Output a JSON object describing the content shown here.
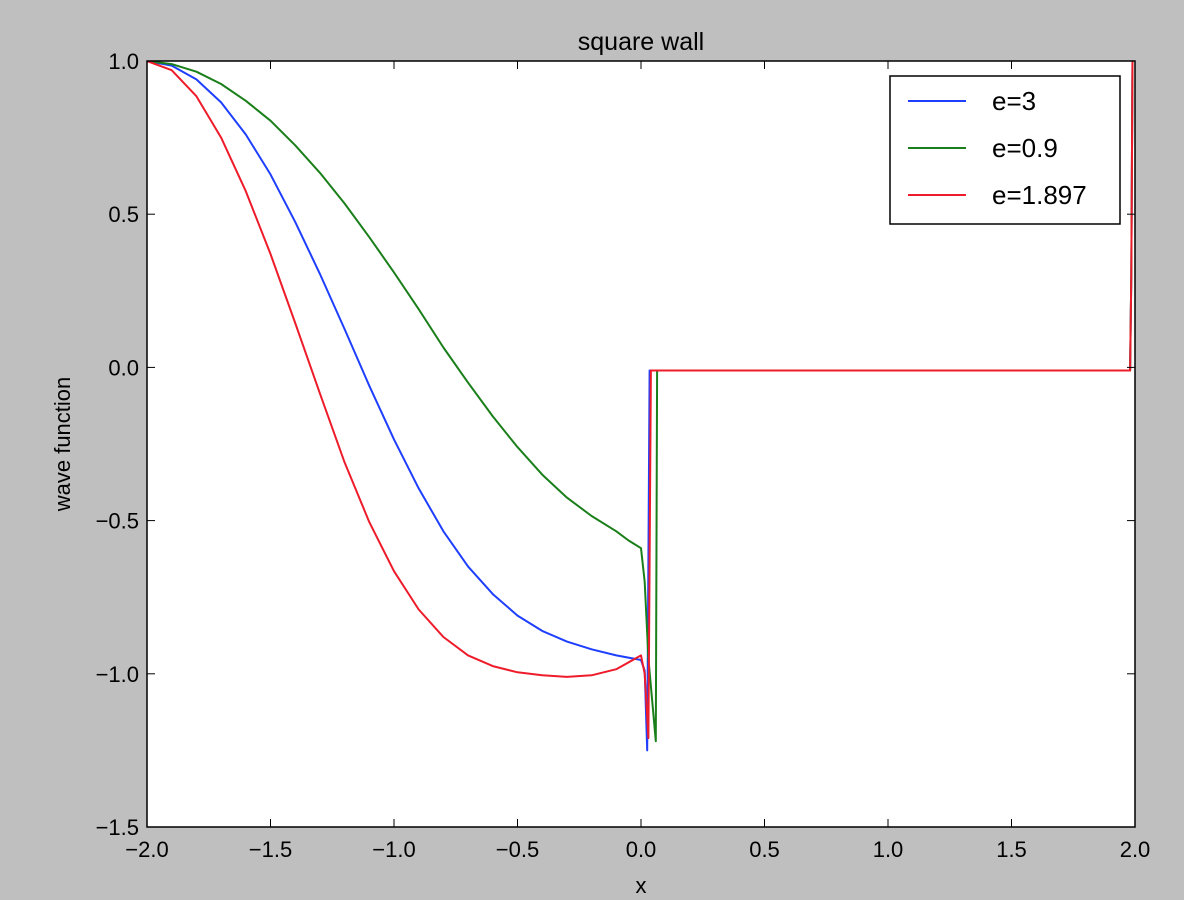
{
  "chart_data": {
    "type": "line",
    "title": "square wall",
    "xlabel": "x",
    "ylabel": "wave function",
    "xlim": [
      -2.0,
      2.0
    ],
    "ylim": [
      -1.5,
      1.0
    ],
    "xticks": [
      -2.0,
      -1.5,
      -1.0,
      -0.5,
      0.0,
      0.5,
      1.0,
      1.5,
      2.0
    ],
    "xtick_labels": [
      "−2.0",
      "−1.5",
      "−1.0",
      "−0.5",
      "0.0",
      "0.5",
      "1.0",
      "1.5",
      "2.0"
    ],
    "yticks": [
      1.0,
      0.5,
      0.0,
      -0.5,
      -1.0,
      -1.5
    ],
    "ytick_labels": [
      "1.0",
      "0.5",
      "0.0",
      "−0.5",
      "−1.0",
      "−1.5"
    ],
    "legend_position": "top-right",
    "grid": false,
    "series": [
      {
        "name": "e=3",
        "color": "#1f3fff",
        "points": [
          [
            -2.0,
            1.0
          ],
          [
            -1.9,
            0.985
          ],
          [
            -1.8,
            0.94
          ],
          [
            -1.7,
            0.865
          ],
          [
            -1.6,
            0.76
          ],
          [
            -1.5,
            0.63
          ],
          [
            -1.4,
            0.475
          ],
          [
            -1.3,
            0.305
          ],
          [
            -1.2,
            0.125
          ],
          [
            -1.1,
            -0.06
          ],
          [
            -1.0,
            -0.235
          ],
          [
            -0.9,
            -0.395
          ],
          [
            -0.8,
            -0.535
          ],
          [
            -0.7,
            -0.65
          ],
          [
            -0.6,
            -0.74
          ],
          [
            -0.5,
            -0.81
          ],
          [
            -0.4,
            -0.86
          ],
          [
            -0.3,
            -0.895
          ],
          [
            -0.2,
            -0.92
          ],
          [
            -0.1,
            -0.94
          ],
          [
            0.0,
            -0.955
          ],
          [
            0.015,
            -0.99
          ],
          [
            0.025,
            -1.25
          ],
          [
            0.035,
            -0.01
          ],
          [
            1.98,
            -0.01
          ],
          [
            1.985,
            0.3
          ],
          [
            1.99,
            1.0
          ]
        ]
      },
      {
        "name": "e=0.9",
        "color": "#1a7f1a",
        "points": [
          [
            -2.0,
            1.0
          ],
          [
            -1.9,
            0.99
          ],
          [
            -1.8,
            0.965
          ],
          [
            -1.7,
            0.925
          ],
          [
            -1.6,
            0.87
          ],
          [
            -1.5,
            0.805
          ],
          [
            -1.4,
            0.725
          ],
          [
            -1.3,
            0.635
          ],
          [
            -1.2,
            0.535
          ],
          [
            -1.1,
            0.425
          ],
          [
            -1.0,
            0.31
          ],
          [
            -0.9,
            0.19
          ],
          [
            -0.8,
            0.065
          ],
          [
            -0.7,
            -0.05
          ],
          [
            -0.6,
            -0.16
          ],
          [
            -0.5,
            -0.26
          ],
          [
            -0.4,
            -0.35
          ],
          [
            -0.3,
            -0.425
          ],
          [
            -0.2,
            -0.485
          ],
          [
            -0.1,
            -0.535
          ],
          [
            -0.05,
            -0.565
          ],
          [
            0.0,
            -0.59
          ],
          [
            0.015,
            -0.7
          ],
          [
            0.03,
            -0.95
          ],
          [
            0.06,
            -1.22
          ],
          [
            0.065,
            -0.01
          ],
          [
            1.98,
            -0.01
          ],
          [
            1.985,
            0.3
          ],
          [
            1.99,
            1.0
          ]
        ]
      },
      {
        "name": "e=1.897",
        "color": "#ee1c2a",
        "points": [
          [
            -2.0,
            1.0
          ],
          [
            -1.9,
            0.97
          ],
          [
            -1.8,
            0.885
          ],
          [
            -1.7,
            0.75
          ],
          [
            -1.6,
            0.575
          ],
          [
            -1.5,
            0.37
          ],
          [
            -1.4,
            0.145
          ],
          [
            -1.3,
            -0.085
          ],
          [
            -1.2,
            -0.31
          ],
          [
            -1.1,
            -0.505
          ],
          [
            -1.0,
            -0.665
          ],
          [
            -0.9,
            -0.79
          ],
          [
            -0.8,
            -0.88
          ],
          [
            -0.7,
            -0.94
          ],
          [
            -0.6,
            -0.975
          ],
          [
            -0.5,
            -0.995
          ],
          [
            -0.4,
            -1.005
          ],
          [
            -0.3,
            -1.01
          ],
          [
            -0.2,
            -1.005
          ],
          [
            -0.1,
            -0.985
          ],
          [
            0.0,
            -0.94
          ],
          [
            0.015,
            -1.0
          ],
          [
            0.03,
            -1.21
          ],
          [
            0.04,
            -0.01
          ],
          [
            1.98,
            -0.01
          ],
          [
            1.985,
            0.3
          ],
          [
            1.99,
            1.0
          ]
        ]
      }
    ]
  }
}
